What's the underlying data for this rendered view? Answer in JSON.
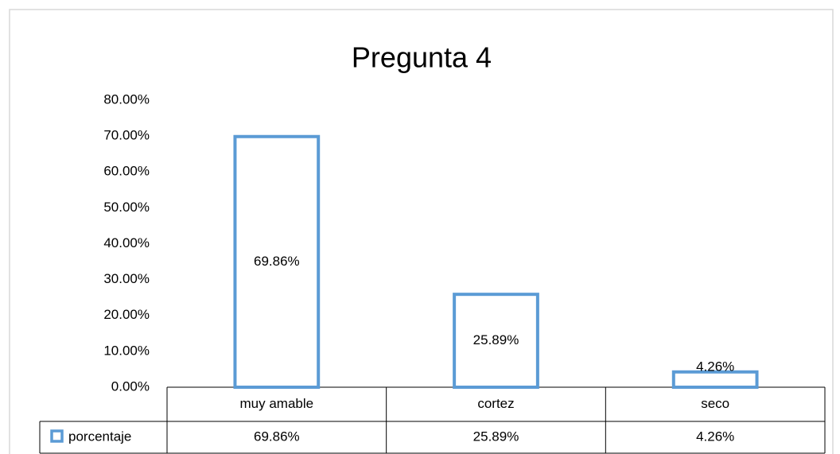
{
  "chart_data": {
    "type": "bar",
    "title": "Pregunta 4",
    "categories": [
      "muy amable",
      "cortez",
      "seco"
    ],
    "series": [
      {
        "name": "porcentaje",
        "color": "#5b9bd5",
        "values": [
          69.86,
          25.89,
          4.26
        ],
        "value_labels": [
          "69.86%",
          "25.89%",
          "4.26%"
        ]
      }
    ],
    "ylim": [
      0,
      80
    ],
    "yticks": [
      {
        "value": 0,
        "label": "0.00%"
      },
      {
        "value": 10,
        "label": "10.00%"
      },
      {
        "value": 20,
        "label": "20.00%"
      },
      {
        "value": 30,
        "label": "30.00%"
      },
      {
        "value": 40,
        "label": "40.00%"
      },
      {
        "value": 50,
        "label": "50.00%"
      },
      {
        "value": 60,
        "label": "60.00%"
      },
      {
        "value": 70,
        "label": "70.00%"
      },
      {
        "value": 80,
        "label": "80.00%"
      }
    ],
    "grid": false,
    "data_table": true
  }
}
